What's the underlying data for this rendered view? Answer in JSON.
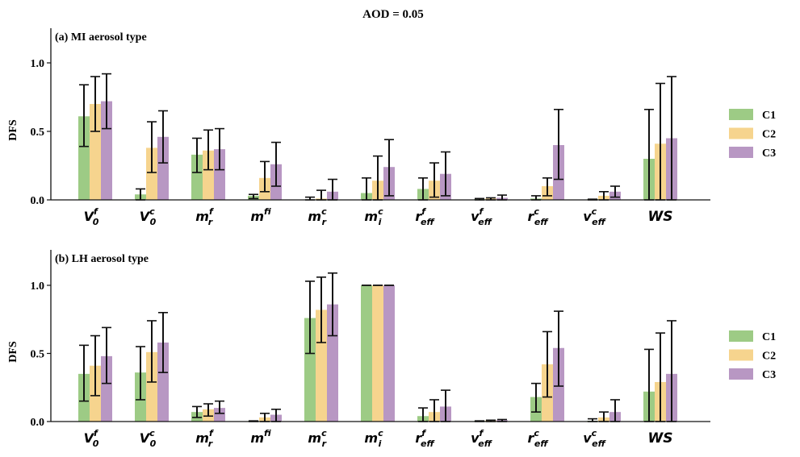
{
  "chart_data": {
    "type": "bar",
    "title": "AOD = 0.05",
    "colors": {
      "C1": "#9dcb85",
      "C2": "#f6d48e",
      "C3": "#b897c3"
    },
    "categories": [
      {
        "base": "V",
        "sup": "f",
        "sub": "0"
      },
      {
        "base": "V",
        "sup": "c",
        "sub": "0"
      },
      {
        "base": "m",
        "sup": "f",
        "sub": "r"
      },
      {
        "base": "m",
        "sup": "f",
        "sub": "i"
      },
      {
        "base": "m",
        "sup": "c",
        "sub": "r"
      },
      {
        "base": "m",
        "sup": "c",
        "sub": "i"
      },
      {
        "base": "r",
        "sup": "f",
        "sub": "eff"
      },
      {
        "base": "v",
        "sup": "f",
        "sub": "eff"
      },
      {
        "base": "r",
        "sup": "c",
        "sub": "eff"
      },
      {
        "base": "v",
        "sup": "c",
        "sub": "eff"
      },
      {
        "base": "WS",
        "sup": "",
        "sub": ""
      }
    ],
    "panels": [
      {
        "label": "(a) MI aerosol type",
        "ylabel": "DFS",
        "ylim": [
          0,
          1.25
        ],
        "yticks": [
          "0.0",
          "0.5",
          "1.0"
        ],
        "legend": "right",
        "series": [
          {
            "name": "C1",
            "values": [
              0.61,
              0.04,
              0.33,
              0.03,
              0.0,
              0.05,
              0.08,
              0.005,
              0.01,
              0.005,
              0.3
            ],
            "lower": [
              0.39,
              0.0,
              0.2,
              0.01,
              0.0,
              0.0,
              0.0,
              0.0,
              0.0,
              0.0,
              0.0
            ],
            "upper": [
              0.84,
              0.08,
              0.45,
              0.04,
              0.02,
              0.16,
              0.16,
              0.01,
              0.03,
              0.005,
              0.66
            ]
          },
          {
            "name": "C2",
            "values": [
              0.7,
              0.38,
              0.36,
              0.16,
              0.01,
              0.14,
              0.14,
              0.01,
              0.1,
              0.03,
              0.41
            ],
            "lower": [
              0.5,
              0.2,
              0.22,
              0.06,
              0.0,
              0.0,
              0.02,
              0.0,
              0.03,
              0.0,
              0.0
            ],
            "upper": [
              0.9,
              0.57,
              0.51,
              0.28,
              0.07,
              0.32,
              0.27,
              0.015,
              0.16,
              0.06,
              0.85
            ]
          },
          {
            "name": "C3",
            "values": [
              0.72,
              0.46,
              0.37,
              0.26,
              0.06,
              0.24,
              0.19,
              0.015,
              0.4,
              0.06,
              0.45
            ],
            "lower": [
              0.52,
              0.27,
              0.22,
              0.1,
              0.0,
              0.03,
              0.03,
              0.0,
              0.15,
              0.02,
              0.0
            ],
            "upper": [
              0.92,
              0.65,
              0.52,
              0.42,
              0.15,
              0.44,
              0.35,
              0.035,
              0.66,
              0.1,
              0.9
            ]
          }
        ]
      },
      {
        "label": "(b) LH aerosol type",
        "ylabel": "DFS",
        "ylim": [
          0,
          1.25
        ],
        "yticks": [
          "0.0",
          "0.5",
          "1.0"
        ],
        "legend": "right",
        "series": [
          {
            "name": "C1",
            "values": [
              0.35,
              0.36,
              0.07,
              0.005,
              0.76,
              1.0,
              0.04,
              0.005,
              0.18,
              0.005,
              0.22
            ],
            "lower": [
              0.15,
              0.16,
              0.03,
              0.0,
              0.5,
              1.0,
              0.0,
              0.0,
              0.07,
              0.0,
              0.0
            ],
            "upper": [
              0.56,
              0.55,
              0.11,
              0.005,
              1.03,
              1.0,
              0.1,
              0.005,
              0.28,
              0.02,
              0.53
            ]
          },
          {
            "name": "C2",
            "values": [
              0.41,
              0.51,
              0.09,
              0.03,
              0.82,
              1.0,
              0.07,
              0.008,
              0.42,
              0.03,
              0.29
            ],
            "lower": [
              0.19,
              0.29,
              0.04,
              0.0,
              0.58,
              1.0,
              0.0,
              0.0,
              0.18,
              0.0,
              0.0
            ],
            "upper": [
              0.63,
              0.74,
              0.13,
              0.06,
              1.06,
              1.0,
              0.16,
              0.01,
              0.66,
              0.07,
              0.65
            ]
          },
          {
            "name": "C3",
            "values": [
              0.48,
              0.58,
              0.1,
              0.05,
              0.86,
              1.0,
              0.11,
              0.01,
              0.54,
              0.07,
              0.35
            ],
            "lower": [
              0.28,
              0.36,
              0.06,
              0.0,
              0.63,
              1.0,
              0.0,
              0.0,
              0.26,
              0.0,
              0.0
            ],
            "upper": [
              0.69,
              0.8,
              0.15,
              0.09,
              1.09,
              1.0,
              0.23,
              0.015,
              0.81,
              0.16,
              0.74
            ]
          }
        ]
      }
    ]
  }
}
